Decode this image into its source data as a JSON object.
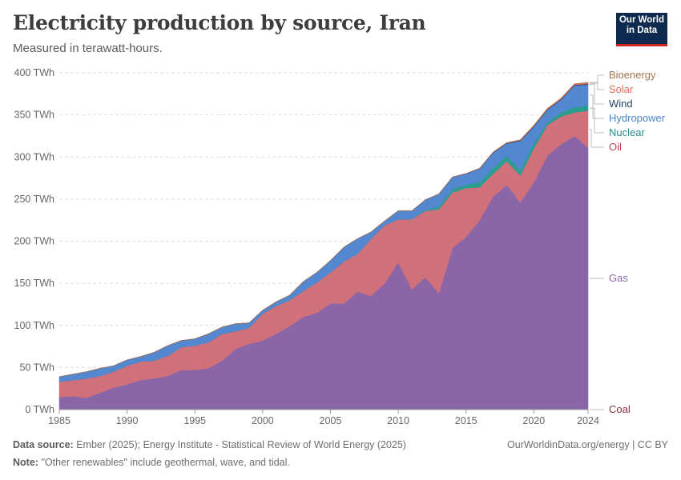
{
  "title": "Electricity production by source, Iran",
  "subtitle": "Measured in terawatt-hours.",
  "logo": {
    "line1": "Our World",
    "line2": "in Data"
  },
  "footer": {
    "source_label": "Data source:",
    "source_text": "Ember (2025); Energy Institute - Statistical Review of World Energy (2025)",
    "note_label": "Note:",
    "note_text": "\"Other renewables\" include geothermal, wave, and tidal.",
    "url": "OurWorldinData.org/energy | CC BY"
  },
  "chart_data": {
    "type": "area",
    "stacked": true,
    "unit": "TWh",
    "ylim": [
      0,
      400
    ],
    "xlim": [
      1985,
      2024
    ],
    "y_ticks": [
      0,
      50,
      100,
      150,
      200,
      250,
      300,
      350,
      400
    ],
    "y_tick_labels": [
      "0 TWh",
      "50 TWh",
      "100 TWh",
      "150 TWh",
      "200 TWh",
      "250 TWh",
      "300 TWh",
      "350 TWh",
      "400 TWh"
    ],
    "x_tick_labels": [
      "1985",
      "1990",
      "1995",
      "2000",
      "2005",
      "2010",
      "2015",
      "2020",
      "2024"
    ],
    "x_ticks": [
      1985,
      1990,
      1995,
      2000,
      2005,
      2010,
      2015,
      2020,
      2024
    ],
    "grid": true,
    "x": [
      1985,
      1986,
      1987,
      1988,
      1989,
      1990,
      1991,
      1992,
      1993,
      1994,
      1995,
      1996,
      1997,
      1998,
      1999,
      2000,
      2001,
      2002,
      2003,
      2004,
      2005,
      2006,
      2007,
      2008,
      2009,
      2010,
      2011,
      2012,
      2013,
      2014,
      2015,
      2016,
      2017,
      2018,
      2019,
      2020,
      2021,
      2022,
      2023,
      2024
    ],
    "series": [
      {
        "name": "Coal",
        "color": "#883039",
        "values": [
          0,
          0,
          0,
          0,
          0,
          0,
          0,
          0,
          0,
          0,
          0,
          0,
          0,
          0,
          0,
          0,
          0,
          0,
          0,
          0,
          0,
          0,
          0,
          0,
          0,
          0,
          0,
          0,
          0,
          0,
          0,
          0,
          0,
          0,
          0,
          0,
          0,
          0,
          0,
          0
        ]
      },
      {
        "name": "Gas",
        "color": "#8a66a8",
        "values": [
          15,
          16,
          14,
          20,
          26,
          30,
          35,
          37,
          40,
          47,
          47,
          49,
          58,
          72,
          78,
          82,
          90,
          99,
          110,
          115,
          126,
          126,
          140,
          135,
          150,
          175,
          143,
          157,
          138,
          192,
          205,
          225,
          253,
          267,
          246,
          270,
          302,
          315,
          325,
          311
        ]
      },
      {
        "name": "Oil",
        "color": "#d0707a",
        "values": [
          18,
          19,
          23,
          20,
          19,
          22,
          22,
          21,
          24,
          27,
          29,
          31,
          32,
          21,
          19,
          32,
          33,
          31,
          31,
          36,
          37,
          50,
          45,
          68,
          69,
          51,
          83,
          79,
          100,
          66,
          58,
          39,
          27,
          28,
          32,
          40,
          36,
          33,
          28,
          44
        ]
      },
      {
        "name": "Nuclear",
        "color": "#2a9d8f",
        "values": [
          0,
          0,
          0,
          0,
          0,
          0,
          0,
          0,
          0,
          0,
          0,
          0,
          0,
          0,
          0,
          0,
          0,
          0,
          0,
          0,
          0,
          0,
          0,
          0,
          0,
          0,
          0,
          1,
          3,
          4,
          4,
          6,
          7,
          6,
          6,
          6,
          3,
          5,
          6,
          6
        ]
      },
      {
        "name": "Hydropower",
        "color": "#5387d0",
        "values": [
          6,
          7,
          8,
          9,
          7,
          7,
          6,
          10,
          12,
          8,
          8,
          10,
          8,
          9,
          6,
          4,
          5,
          6,
          11,
          12,
          14,
          17,
          18,
          8,
          5,
          10,
          10,
          12,
          15,
          14,
          13,
          16,
          18,
          15,
          35,
          20,
          15,
          15,
          26,
          25
        ]
      },
      {
        "name": "Wind",
        "color": "#1c3f5e",
        "values": [
          0,
          0,
          0,
          0,
          0,
          0,
          0,
          0,
          0,
          0,
          0,
          0,
          0,
          0,
          0,
          0,
          0,
          0,
          0,
          0,
          0,
          0,
          0,
          0,
          0,
          0,
          0,
          0.2,
          0.2,
          0.2,
          0.3,
          0.3,
          0.5,
          0.6,
          0.7,
          0.8,
          0.7,
          0.7,
          0.7,
          0.8
        ]
      },
      {
        "name": "Solar",
        "color": "#e06f58",
        "values": [
          0,
          0,
          0,
          0,
          0,
          0,
          0,
          0,
          0,
          0,
          0,
          0,
          0,
          0,
          0,
          0,
          0,
          0,
          0,
          0,
          0,
          0,
          0,
          0,
          0,
          0,
          0,
          0,
          0,
          0,
          0.1,
          0.2,
          0.3,
          0.5,
          0.7,
          0.8,
          0.9,
          1.0,
          1.2,
          1.5
        ]
      },
      {
        "name": "Bioenergy",
        "color": "#a2754b",
        "values": [
          0,
          0,
          0,
          0,
          0,
          0,
          0,
          0,
          0,
          0,
          0,
          0,
          0,
          0,
          0,
          0,
          0,
          0,
          0,
          0,
          0,
          0,
          0,
          0,
          0,
          0,
          0,
          0,
          0,
          0,
          0,
          0,
          0,
          0,
          0,
          0,
          0,
          0,
          0,
          0.3
        ]
      }
    ],
    "legend_labels": [
      {
        "name": "Bioenergy",
        "color": "#a2754b"
      },
      {
        "name": "Solar",
        "color": "#e06f58"
      },
      {
        "name": "Wind",
        "color": "#1c3f5e"
      },
      {
        "name": "Hydropower",
        "color": "#4a86c6"
      },
      {
        "name": "Nuclear",
        "color": "#2a8c8c"
      },
      {
        "name": "Oil",
        "color": "#c1434f"
      },
      {
        "name": "Gas",
        "color": "#8a66a8"
      },
      {
        "name": "Coal",
        "color": "#883039"
      }
    ]
  }
}
